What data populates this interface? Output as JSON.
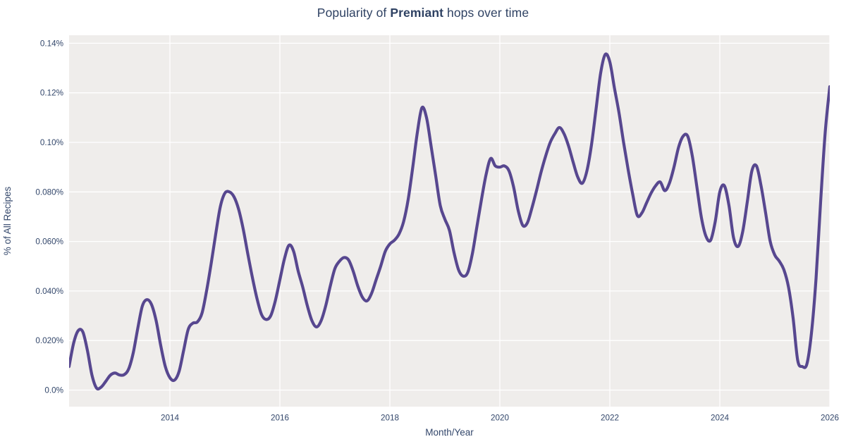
{
  "title": {
    "prefix": "Popularity of ",
    "emphasis": "Premiant",
    "suffix": " hops over time"
  },
  "colors": {
    "line": "#57478f",
    "plot_background": "#efedeb",
    "figure_background": "#ffffff",
    "gridline": "#ffffff",
    "title_text": "#2f4263",
    "axis_text": "#33476b"
  },
  "chart_data": {
    "type": "line",
    "title": "Popularity of Premiant hops over time",
    "title_bold_word": "Premiant",
    "xlabel": "Month/Year",
    "ylabel": "% of All Recipes",
    "legend": false,
    "grid": true,
    "x_tick_labels": [
      "2014",
      "2016",
      "2018",
      "2020",
      "2022",
      "2024",
      "2026"
    ],
    "x_tick_years": [
      2014,
      2016,
      2018,
      2020,
      2022,
      2024,
      2026
    ],
    "y_tick_labels": [
      "0.0%",
      "0.020%",
      "0.040%",
      "0.060%",
      "0.080%",
      "0.10%",
      "0.12%",
      "0.14%"
    ],
    "y_tick_values": [
      0,
      0.02,
      0.04,
      0.06,
      0.08,
      0.1,
      0.12,
      0.14
    ],
    "x_range": [
      2012.167,
      2026.0
    ],
    "y_range": [
      -0.00669,
      0.14325
    ],
    "unit": "% of all recipes (monthly)",
    "series": [
      {
        "name": "Premiant",
        "years": [
          {
            "year": 2012,
            "first_month": 3,
            "values": [
              0.0095,
              0.019,
              0.024,
              0.0235,
              0.016,
              0.006,
              0.0008,
              0.0012,
              0.0035,
              0.006
            ]
          },
          {
            "year": 2013,
            "first_month": 1,
            "values": [
              0.0069,
              0.0061,
              0.0062,
              0.0085,
              0.015,
              0.025,
              0.034,
              0.0365,
              0.0345,
              0.028,
              0.018,
              0.0095
            ]
          },
          {
            "year": 2014,
            "first_month": 1,
            "values": [
              0.005,
              0.004,
              0.0075,
              0.016,
              0.0245,
              0.027,
              0.0275,
              0.031,
              0.04,
              0.051,
              0.063,
              0.074
            ]
          },
          {
            "year": 2015,
            "first_month": 1,
            "values": [
              0.0795,
              0.08,
              0.078,
              0.073,
              0.065,
              0.055,
              0.0455,
              0.037,
              0.0305,
              0.0285,
              0.03,
              0.036
            ]
          },
          {
            "year": 2016,
            "first_month": 1,
            "values": [
              0.0445,
              0.053,
              0.0585,
              0.056,
              0.048,
              0.0415,
              0.034,
              0.028,
              0.0255,
              0.028,
              0.034,
              0.042
            ]
          },
          {
            "year": 2017,
            "first_month": 1,
            "values": [
              0.049,
              0.052,
              0.0535,
              0.0525,
              0.048,
              0.042,
              0.0375,
              0.036,
              0.039,
              0.0445,
              0.05,
              0.056
            ]
          },
          {
            "year": 2018,
            "first_month": 1,
            "values": [
              0.059,
              0.0605,
              0.063,
              0.068,
              0.077,
              0.09,
              0.104,
              0.114,
              0.11,
              0.0985,
              0.0865,
              0.0745
            ]
          },
          {
            "year": 2019,
            "first_month": 1,
            "values": [
              0.069,
              0.0645,
              0.0555,
              0.0485,
              0.046,
              0.0475,
              0.055,
              0.066,
              0.077,
              0.087,
              0.0935,
              0.0905
            ]
          },
          {
            "year": 2020,
            "first_month": 1,
            "values": [
              0.09,
              0.0905,
              0.0885,
              0.082,
              0.0725,
              0.0665,
              0.0675,
              0.0735,
              0.0805,
              0.088,
              0.0945,
              0.1
            ]
          },
          {
            "year": 2021,
            "first_month": 1,
            "values": [
              0.1035,
              0.106,
              0.1035,
              0.0985,
              0.092,
              0.086,
              0.0835,
              0.0885,
              0.099,
              0.1135,
              0.128,
              0.1355
            ]
          },
          {
            "year": 2022,
            "first_month": 1,
            "values": [
              0.1325,
              0.122,
              0.112,
              0.1,
              0.089,
              0.079,
              0.0705,
              0.0715,
              0.0755,
              0.0795,
              0.0825,
              0.084
            ]
          },
          {
            "year": 2023,
            "first_month": 1,
            "values": [
              0.0805,
              0.0835,
              0.09,
              0.098,
              0.1025,
              0.1025,
              0.0945,
              0.082,
              0.0695,
              0.062,
              0.0605,
              0.068
            ]
          },
          {
            "year": 2024,
            "first_month": 1,
            "values": [
              0.08,
              0.0825,
              0.0745,
              0.0615,
              0.058,
              0.064,
              0.076,
              0.0885,
              0.0905,
              0.0825,
              0.0715,
              0.06
            ]
          },
          {
            "year": 2025,
            "first_month": 1,
            "values": [
              0.0545,
              0.052,
              0.0485,
              0.0415,
              0.029,
              0.012,
              0.0095,
              0.0105,
              0.023,
              0.045,
              0.076,
              0.104
            ]
          },
          {
            "year": 2026,
            "first_month": 1,
            "values": [
              0.1225
            ]
          }
        ]
      }
    ]
  }
}
